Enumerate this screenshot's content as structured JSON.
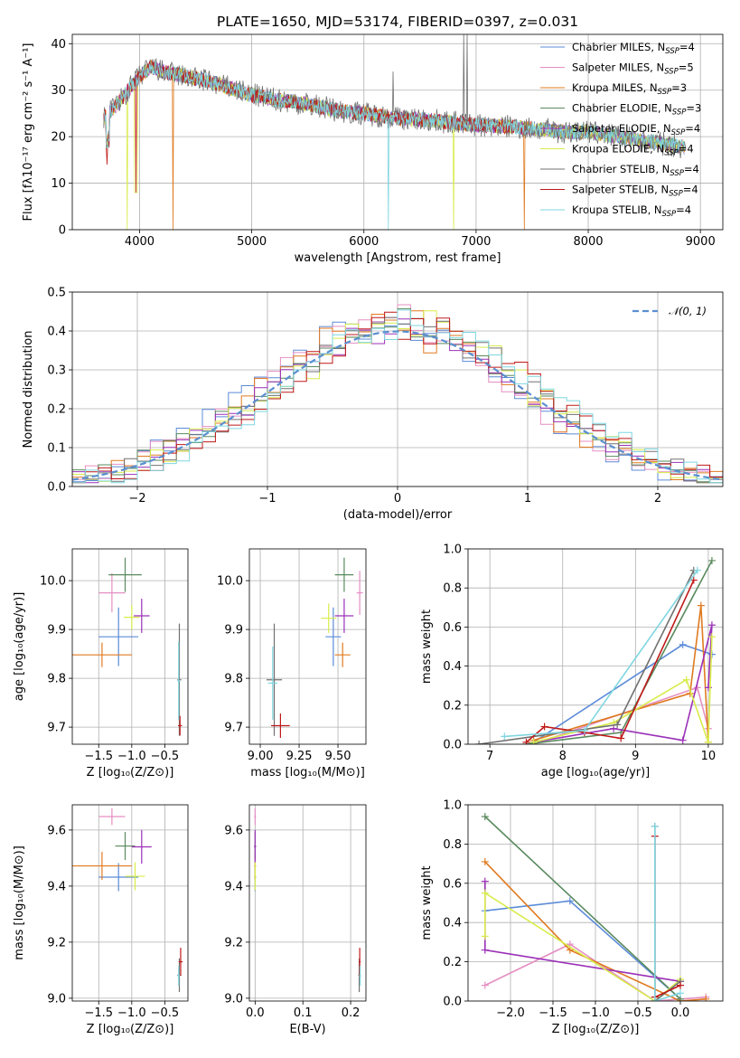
{
  "colors": {
    "chabrier_miles": "#5b8bd8",
    "salpeter_miles": "#e58fc2",
    "kroupa_miles": "#e07a20",
    "chabrier_elodie": "#5a8a5e",
    "salpeter_elodie": "#9b30b8",
    "kroupa_elodie": "#d8ec4a",
    "chabrier_stelib": "#707070",
    "salpeter_stelib": "#c01818",
    "kroupa_stelib": "#7fd6e0",
    "normal_curve": "#5a8fd0",
    "grid": "#b0b0b0"
  },
  "chart_data": [
    {
      "id": "spectrum",
      "type": "line",
      "title": "PLATE=1650, MJD=53174, FIBERID=0397, z=0.031",
      "xlabel": "wavelength [Angstrom, rest frame]",
      "ylabel": "Flux [fλ10⁻¹⁷ erg cm⁻² s⁻¹ A⁻¹]",
      "xlim": [
        3400,
        9200
      ],
      "ylim": [
        0,
        42
      ],
      "xticks": [
        4000,
        5000,
        6000,
        7000,
        8000,
        9000
      ],
      "yticks": [
        0,
        10,
        20,
        30,
        40
      ],
      "legend_position": "top-right",
      "series": [
        {
          "name": "Chabrier MILES, N_SSP=4",
          "color_key": "chabrier_miles"
        },
        {
          "name": "Salpeter MILES, N_SSP=5",
          "color_key": "salpeter_miles"
        },
        {
          "name": "Kroupa MILES, N_SSP=3",
          "color_key": "kroupa_miles"
        },
        {
          "name": "Chabrier ELODIE, N_SSP=3",
          "color_key": "chabrier_elodie"
        },
        {
          "name": "Salpeter ELODIE, N_SSP=4",
          "color_key": "salpeter_elodie"
        },
        {
          "name": "Kroupa ELODIE, N_SSP=4",
          "color_key": "kroupa_elodie"
        },
        {
          "name": "Chabrier STELIB, N_SSP=4",
          "color_key": "chabrier_stelib"
        },
        {
          "name": "Salpeter STELIB, N_SSP=4",
          "color_key": "salpeter_stelib"
        },
        {
          "name": "Kroupa STELIB, N_SSP=4",
          "color_key": "kroupa_stelib"
        }
      ],
      "continuum": {
        "x": [
          3680,
          3720,
          3800,
          3900,
          4000,
          4100,
          4200,
          4400,
          4600,
          4800,
          5000,
          5200,
          5500,
          5800,
          6000,
          6300,
          6600,
          7000,
          7400,
          7800,
          8000,
          8400,
          8800,
          8900
        ],
        "y": [
          24,
          25,
          27,
          30,
          33,
          35,
          34,
          33,
          32,
          30.5,
          29,
          28,
          27,
          25.5,
          25,
          24,
          23.5,
          22.5,
          22,
          21,
          21,
          19.5,
          18,
          17.5
        ]
      },
      "absorption_features": [
        {
          "x": 3710,
          "depth_to": 14
        },
        {
          "x": 3890,
          "depth_to": 0
        },
        {
          "x": 3970,
          "depth_to": 8
        },
        {
          "x": 4300,
          "depth_to": 0
        },
        {
          "x": 6220,
          "depth_to": 0
        },
        {
          "x": 6800,
          "depth_to": 0
        },
        {
          "x": 7430,
          "depth_to": 0
        }
      ],
      "emission_spikes": [
        {
          "x": 6890,
          "peak": 42
        },
        {
          "x": 6920,
          "peak": 42
        },
        {
          "x": 6260,
          "peak": 34
        }
      ]
    },
    {
      "id": "residual_hist",
      "type": "line",
      "xlabel": "(data-model)/error",
      "ylabel": "Normed distribution",
      "xlim": [
        -2.5,
        2.5
      ],
      "ylim": [
        0,
        0.5
      ],
      "xticks": [
        -2,
        -1,
        0,
        1,
        2
      ],
      "xtick_labels": [
        "−2",
        "−1",
        "0",
        "1",
        "2"
      ],
      "yticks": [
        0,
        0.1,
        0.2,
        0.3,
        0.4,
        0.5
      ],
      "ytick_labels": [
        "0.0",
        "0.1",
        "0.2",
        "0.3",
        "0.4",
        "0.5"
      ],
      "legend_position": "top-right",
      "legend_label": "𝒩(0, 1)",
      "reference_curve": {
        "type": "normal",
        "mean": 0,
        "sigma": 1
      },
      "bin_width": 0.1,
      "histogram_count": 9,
      "histogram_description": "Nine step histograms, one per model, scattering around the N(0,1) curve"
    },
    {
      "id": "age_vs_Z",
      "type": "scatter",
      "xlabel": "Z [log₁₀(Z/Z⊙)]",
      "ylabel": "age  [log₁₀(age/yr)]",
      "xlim": [
        -1.9,
        -0.15
      ],
      "ylim": [
        9.665,
        10.065
      ],
      "xticks": [
        -1.5,
        -1.0,
        -0.5
      ],
      "xtick_labels": [
        "−1.5",
        "−1.0",
        "−0.5"
      ],
      "yticks": [
        9.7,
        9.8,
        9.9,
        10.0
      ],
      "ytick_labels": [
        "9.7",
        "9.8",
        "9.9",
        "10.0"
      ],
      "points": [
        {
          "color_key": "chabrier_miles",
          "x": -1.2,
          "xerr": 0.3,
          "y": 9.885,
          "yerr": 0.06
        },
        {
          "color_key": "salpeter_miles",
          "x": -1.3,
          "xerr": 0.2,
          "y": 9.975,
          "yerr": 0.04
        },
        {
          "color_key": "kroupa_miles",
          "x": -1.45,
          "xerr": 0.45,
          "y": 9.848,
          "yerr": 0.025
        },
        {
          "color_key": "chabrier_elodie",
          "x": -1.1,
          "xerr": 0.25,
          "y": 10.012,
          "yerr": 0.035
        },
        {
          "color_key": "salpeter_elodie",
          "x": -0.85,
          "xerr": 0.12,
          "y": 9.928,
          "yerr": 0.035
        },
        {
          "color_key": "kroupa_elodie",
          "x": -1.0,
          "xerr": 0.12,
          "y": 9.925,
          "yerr": 0.025
        },
        {
          "color_key": "chabrier_stelib",
          "x": -0.28,
          "xerr": 0.03,
          "y": 9.797,
          "yerr": 0.115
        },
        {
          "color_key": "salpeter_stelib",
          "x": -0.27,
          "xerr": 0.03,
          "y": 9.703,
          "yerr": 0.02
        },
        {
          "color_key": "kroupa_stelib",
          "x": -0.29,
          "xerr": 0.02,
          "y": 9.795,
          "yerr": 0.08
        }
      ]
    },
    {
      "id": "age_vs_mass",
      "type": "scatter",
      "xlabel": "mass [log₁₀(M/M⊙)]",
      "xlim": [
        8.93,
        9.68
      ],
      "ylim": [
        9.665,
        10.065
      ],
      "xticks": [
        9.0,
        9.25,
        9.5
      ],
      "xtick_labels": [
        "9.00",
        "9.25",
        "9.50"
      ],
      "yticks": [
        9.7,
        9.8,
        9.9,
        10.0
      ],
      "ytick_labels": [
        "9.7",
        "9.8",
        "9.9",
        "10.0"
      ],
      "points": [
        {
          "color_key": "chabrier_miles",
          "x": 9.47,
          "xerr": 0.05,
          "y": 9.885,
          "yerr": 0.06
        },
        {
          "color_key": "salpeter_miles",
          "x": 9.64,
          "xerr": 0.02,
          "y": 9.975,
          "yerr": 0.045
        },
        {
          "color_key": "kroupa_miles",
          "x": 9.53,
          "xerr": 0.05,
          "y": 9.848,
          "yerr": 0.025
        },
        {
          "color_key": "chabrier_elodie",
          "x": 9.54,
          "xerr": 0.06,
          "y": 10.012,
          "yerr": 0.035
        },
        {
          "color_key": "salpeter_elodie",
          "x": 9.54,
          "xerr": 0.06,
          "y": 9.928,
          "yerr": 0.035
        },
        {
          "color_key": "kroupa_elodie",
          "x": 9.44,
          "xerr": 0.05,
          "y": 9.923,
          "yerr": 0.03
        },
        {
          "color_key": "chabrier_stelib",
          "x": 9.09,
          "xerr": 0.05,
          "y": 9.797,
          "yerr": 0.115
        },
        {
          "color_key": "salpeter_stelib",
          "x": 9.13,
          "xerr": 0.06,
          "y": 9.703,
          "yerr": 0.025
        },
        {
          "color_key": "kroupa_stelib",
          "x": 9.08,
          "xerr": 0.03,
          "y": 9.79,
          "yerr": 0.075
        }
      ]
    },
    {
      "id": "weight_vs_age",
      "type": "line",
      "xlabel": "age  [log₁₀(age/yr)]",
      "ylabel": "mass weight",
      "xlim": [
        6.7,
        10.2
      ],
      "ylim": [
        0,
        1.0
      ],
      "xticks": [
        7,
        8,
        9,
        10
      ],
      "yticks": [
        0,
        0.2,
        0.4,
        0.6,
        0.8,
        1.0
      ],
      "ytick_labels": [
        "0.0",
        "0.2",
        "0.4",
        "0.6",
        "0.8",
        "1.0"
      ],
      "series": [
        {
          "color_key": "chabrier_miles",
          "x": [
            7.6,
            9.65,
            10.05
          ],
          "y": [
            0.01,
            0.51,
            0.46
          ]
        },
        {
          "color_key": "salpeter_miles",
          "x": [
            7.6,
            9.85,
            10.0
          ],
          "y": [
            0.0,
            0.29,
            0.08
          ]
        },
        {
          "color_key": "kroupa_miles",
          "x": [
            7.6,
            9.75,
            9.9,
            10.0
          ],
          "y": [
            0.02,
            0.26,
            0.71,
            0.01
          ]
        },
        {
          "color_key": "chabrier_elodie",
          "x": [
            7.5,
            8.8,
            10.05
          ],
          "y": [
            0.0,
            0.06,
            0.94
          ]
        },
        {
          "color_key": "salpeter_elodie",
          "x": [
            7.6,
            8.7,
            9.65,
            10.05,
            10.0
          ],
          "y": [
            0.01,
            0.08,
            0.02,
            0.61,
            0.29
          ]
        },
        {
          "color_key": "kroupa_elodie",
          "x": [
            7.6,
            8.7,
            9.7,
            10.0,
            10.05
          ],
          "y": [
            0.01,
            0.11,
            0.33,
            0.01,
            0.55
          ]
        },
        {
          "color_key": "chabrier_stelib",
          "x": [
            6.85,
            8.75,
            9.8
          ],
          "y": [
            0.0,
            0.1,
            0.89
          ]
        },
        {
          "color_key": "salpeter_stelib",
          "x": [
            7.5,
            7.75,
            8.3,
            8.8,
            9.8
          ],
          "y": [
            0.01,
            0.09,
            0.06,
            0.03,
            0.84
          ]
        },
        {
          "color_key": "kroupa_stelib",
          "x": [
            7.2,
            8.3,
            9.85
          ],
          "y": [
            0.04,
            0.07,
            0.89
          ]
        }
      ]
    },
    {
      "id": "mass_vs_Z",
      "type": "scatter",
      "xlabel": "Z [log₁₀(Z/Z⊙)]",
      "ylabel": "mass [log₁₀(M/M⊙)]",
      "xlim": [
        -1.9,
        -0.15
      ],
      "ylim": [
        8.99,
        9.69
      ],
      "xticks": [
        -1.5,
        -1.0,
        -0.5
      ],
      "xtick_labels": [
        "−1.5",
        "−1.0",
        "−0.5"
      ],
      "yticks": [
        9.0,
        9.2,
        9.4,
        9.6
      ],
      "ytick_labels": [
        "9.0",
        "9.2",
        "9.4",
        "9.6"
      ],
      "points": [
        {
          "color_key": "chabrier_miles",
          "x": -1.2,
          "xerr": 0.3,
          "y": 9.432,
          "yerr": 0.05
        },
        {
          "color_key": "salpeter_miles",
          "x": -1.3,
          "xerr": 0.2,
          "y": 9.648,
          "yerr": 0.03
        },
        {
          "color_key": "kroupa_miles",
          "x": -1.45,
          "xerr": 0.45,
          "y": 9.472,
          "yerr": 0.05
        },
        {
          "color_key": "chabrier_elodie",
          "x": -1.1,
          "xerr": 0.15,
          "y": 9.543,
          "yerr": 0.05
        },
        {
          "color_key": "salpeter_elodie",
          "x": -0.85,
          "xerr": 0.15,
          "y": 9.54,
          "yerr": 0.06
        },
        {
          "color_key": "kroupa_elodie",
          "x": -0.95,
          "xerr": 0.15,
          "y": 9.435,
          "yerr": 0.05
        },
        {
          "color_key": "chabrier_stelib",
          "x": -0.28,
          "xerr": 0.03,
          "y": 9.082,
          "yerr": 0.06
        },
        {
          "color_key": "salpeter_stelib",
          "x": -0.26,
          "xerr": 0.03,
          "y": 9.13,
          "yerr": 0.05
        },
        {
          "color_key": "kroupa_stelib",
          "x": -0.29,
          "xerr": 0.02,
          "y": 9.08,
          "yerr": 0.035
        }
      ]
    },
    {
      "id": "mass_vs_EBV",
      "type": "scatter",
      "xlabel": "E(B-V)",
      "xlim": [
        -0.012,
        0.232
      ],
      "ylim": [
        8.99,
        9.69
      ],
      "xticks": [
        0.0,
        0.1,
        0.2
      ],
      "xtick_labels": [
        "0.0",
        "0.1",
        "0.2"
      ],
      "yticks": [
        9.0,
        9.2,
        9.4,
        9.6
      ],
      "ytick_labels": [
        "9.0",
        "9.2",
        "9.4",
        "9.6"
      ],
      "points": [
        {
          "color_key": "chabrier_miles",
          "x": 0.0,
          "xerr": 0.002,
          "y": 9.432,
          "yerr": 0.05
        },
        {
          "color_key": "salpeter_miles",
          "x": 0.0,
          "xerr": 0.002,
          "y": 9.648,
          "yerr": 0.03
        },
        {
          "color_key": "kroupa_miles",
          "x": 0.0,
          "xerr": 0.002,
          "y": 9.472,
          "yerr": 0.05
        },
        {
          "color_key": "chabrier_elodie",
          "x": 0.0,
          "xerr": 0.002,
          "y": 9.543,
          "yerr": 0.05
        },
        {
          "color_key": "salpeter_elodie",
          "x": 0.0,
          "xerr": 0.002,
          "y": 9.54,
          "yerr": 0.06
        },
        {
          "color_key": "kroupa_elodie",
          "x": 0.0,
          "xerr": 0.002,
          "y": 9.435,
          "yerr": 0.05
        },
        {
          "color_key": "chabrier_stelib",
          "x": 0.218,
          "xerr": 0.002,
          "y": 9.082,
          "yerr": 0.06
        },
        {
          "color_key": "salpeter_stelib",
          "x": 0.219,
          "xerr": 0.002,
          "y": 9.13,
          "yerr": 0.05
        },
        {
          "color_key": "kroupa_stelib",
          "x": 0.22,
          "xerr": 0.002,
          "y": 9.08,
          "yerr": 0.035
        }
      ]
    },
    {
      "id": "weight_vs_Z",
      "type": "line",
      "xlabel": "Z [log₁₀(Z/Z⊙)]",
      "ylabel": "mass weight",
      "xlim": [
        -2.5,
        0.5
      ],
      "ylim": [
        0,
        1.0
      ],
      "xticks": [
        -2.0,
        -1.5,
        -1.0,
        -0.5,
        0.0
      ],
      "xtick_labels": [
        "−2.0",
        "−1.5",
        "−1.0",
        "−0.5",
        "0.0"
      ],
      "yticks": [
        0,
        0.2,
        0.4,
        0.6,
        0.8,
        1.0
      ],
      "ytick_labels": [
        "0.0",
        "0.2",
        "0.4",
        "0.6",
        "0.8",
        "1.0"
      ],
      "series": [
        {
          "color_key": "chabrier_miles",
          "x": [
            -2.3,
            -1.3,
            0.0
          ],
          "y": [
            0.46,
            0.51,
            0.01
          ]
        },
        {
          "color_key": "salpeter_miles",
          "x": [
            -2.3,
            -1.3,
            -0.3,
            0.3
          ],
          "y": [
            0.08,
            0.29,
            0.0,
            0.02
          ]
        },
        {
          "color_key": "kroupa_miles",
          "x": [
            -2.3,
            -1.3,
            0.0,
            0.3
          ],
          "y": [
            0.71,
            0.26,
            0.0,
            0.01
          ]
        },
        {
          "color_key": "chabrier_elodie",
          "x": [
            -2.3,
            0.0
          ],
          "y": [
            0.94,
            0.01
          ]
        },
        {
          "color_key": "salpeter_elodie",
          "x": [
            -2.3,
            -2.3,
            0.0
          ],
          "y": [
            0.61,
            0.26,
            0.1
          ]
        },
        {
          "color_key": "kroupa_elodie",
          "x": [
            -2.3,
            -2.3,
            -0.3,
            0.0
          ],
          "y": [
            0.33,
            0.55,
            0.0,
            0.11
          ]
        },
        {
          "color_key": "chabrier_stelib",
          "x": [
            -0.3,
            -0.3,
            0.0
          ],
          "y": [
            0.89,
            0.0,
            0.1
          ]
        },
        {
          "color_key": "salpeter_stelib",
          "x": [
            -0.3,
            -0.3,
            0.0
          ],
          "y": [
            0.84,
            0.02,
            0.08
          ]
        },
        {
          "color_key": "kroupa_stelib",
          "x": [
            -0.3,
            -0.3,
            0.0
          ],
          "y": [
            0.89,
            0.0,
            0.04
          ]
        }
      ]
    }
  ]
}
